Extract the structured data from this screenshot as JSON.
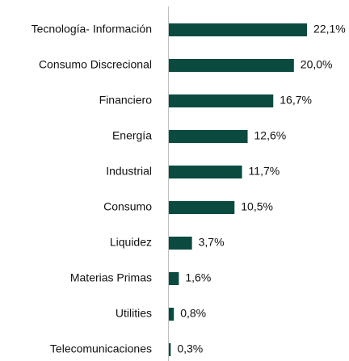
{
  "chart_data": {
    "type": "bar",
    "orientation": "horizontal",
    "categories": [
      "Tecnología- Información",
      "Consumo Discrecional",
      "Financiero",
      "Energía",
      "Industrial",
      "Consumo",
      "Liquidez",
      "Materias Primas",
      "Utilities",
      "Telecomunicaciones"
    ],
    "values": [
      22.1,
      20.0,
      16.7,
      12.6,
      11.7,
      10.5,
      3.7,
      1.6,
      0.8,
      0.3
    ],
    "value_labels": [
      "22,1%",
      "20,0%",
      "16,7%",
      "12,6%",
      "11,7%",
      "10,5%",
      "3,7%",
      "1,6%",
      "0,8%",
      "0,3%"
    ],
    "color": "#0b4a3f"
  }
}
